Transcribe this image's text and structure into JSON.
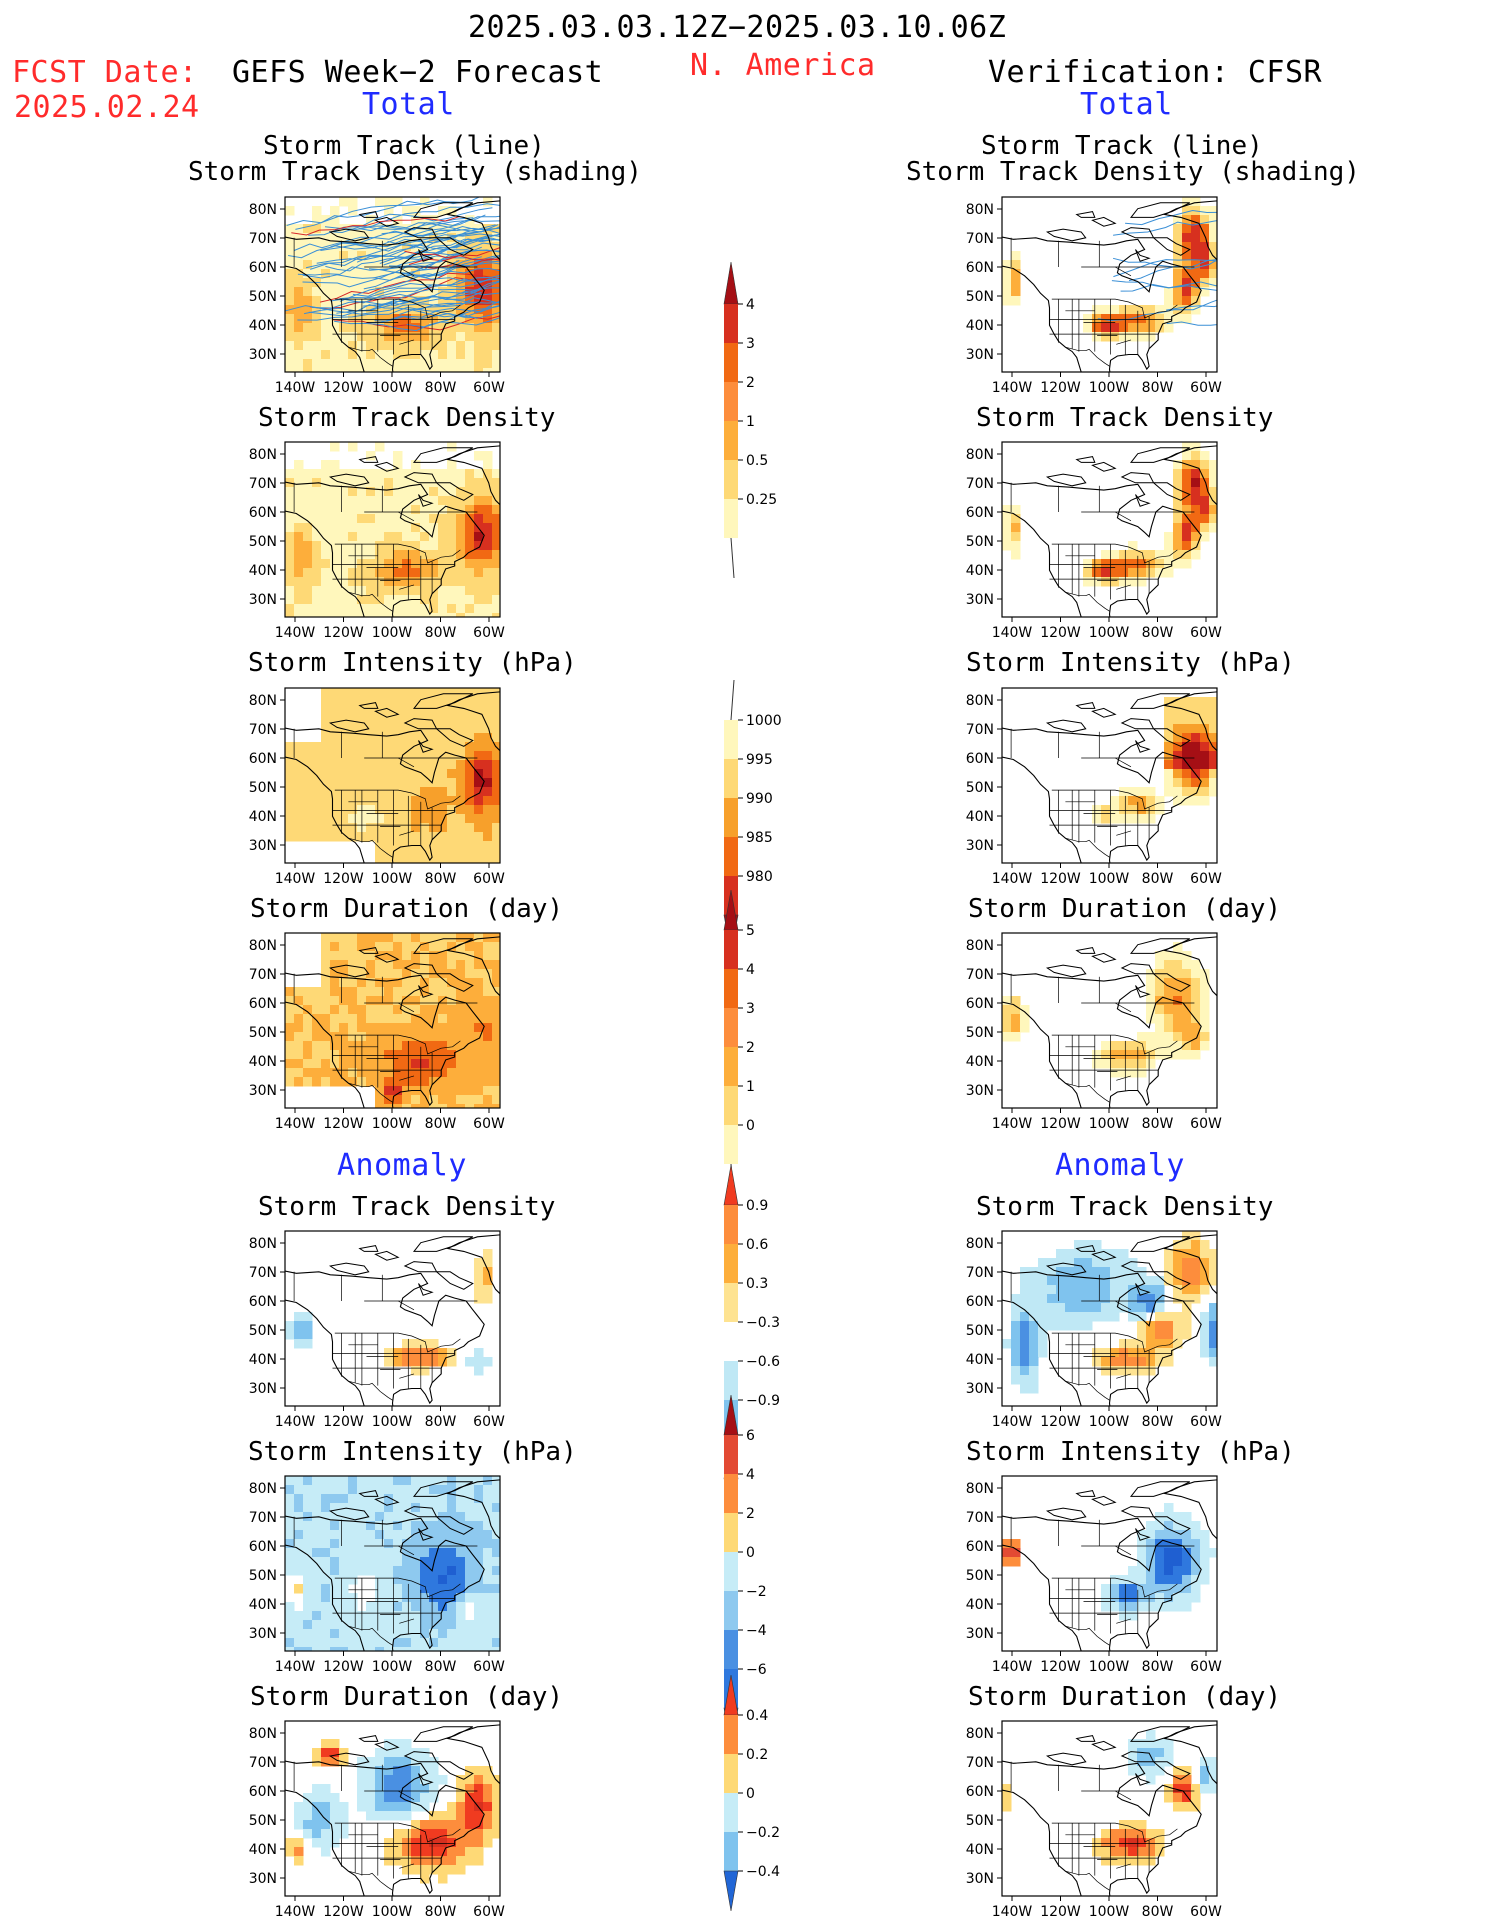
{
  "header": {
    "date_range": "2025.03.03.12Z−2025.03.10.06Z",
    "fcst_label": "FCST Date:",
    "fcst_date": "2025.02.24",
    "left_title": "GEFS Week−2 Forecast",
    "region": "N. America",
    "right_title": "Verification: CFSR"
  },
  "sections": {
    "total": "Total",
    "anomaly": "Anomaly"
  },
  "panel_titles": {
    "track_line": "Storm Track (line)",
    "track_shading": "Storm Track Density (shading)",
    "density": "Storm Track Density",
    "intensity": "Storm Intensity (hPa)",
    "duration": "Storm Duration (day)"
  },
  "axes": {
    "lat_labels": [
      "80N",
      "70N",
      "60N",
      "50N",
      "40N",
      "30N"
    ],
    "lon_labels": [
      "140W",
      "120W",
      "100W",
      "80W",
      "60W"
    ]
  },
  "colorbars": [
    {
      "id": "density_total",
      "labels": [
        "4",
        "3",
        "2",
        "1",
        "0.5",
        "0.25"
      ],
      "colors": [
        "#a50f15",
        "#d7301f",
        "#f16913",
        "#fd8d3c",
        "#fdae3b",
        "#fed976",
        "#fff7bc"
      ],
      "top_arrow": "#a50f15",
      "bottom_tail": "open"
    },
    {
      "id": "intensity_total",
      "labels": [
        "1000",
        "995",
        "990",
        "985",
        "980"
      ],
      "colors": [
        "#fff7bc",
        "#fed976",
        "#f7a02b",
        "#f16913",
        "#d7301f",
        "#a50f15"
      ],
      "top_arrow": "open",
      "bottom_tail": "#a50f15"
    },
    {
      "id": "duration_total",
      "labels": [
        "5",
        "4",
        "3",
        "2",
        "1",
        "0"
      ],
      "colors": [
        "#a50f15",
        "#d7301f",
        "#f16913",
        "#fd8d3c",
        "#fdae3b",
        "#fed976",
        "#fff7bc"
      ],
      "top_arrow": "#a50f15",
      "bottom_tail": "open"
    },
    {
      "id": "density_anom",
      "labels": [
        "0.9",
        "0.6",
        "0.3",
        "−0.3",
        "−0.6",
        "−0.9"
      ],
      "colors": [
        "#f03b20",
        "#fd8d3c",
        "#fdae3b",
        "#fee391",
        "#ffffff",
        "#bfe8f5",
        "#7fc3ee",
        "#4a90e2",
        "#2166d6"
      ],
      "top_arrow": "#f03b20",
      "bottom_tail": "#2166d6"
    },
    {
      "id": "intensity_anom",
      "labels": [
        "6",
        "4",
        "2",
        "0",
        "−2",
        "−4",
        "−6"
      ],
      "colors": [
        "#a50f15",
        "#e34a33",
        "#fd8d3c",
        "#fed976",
        "#c6ecf7",
        "#8ec9ef",
        "#4a90e2",
        "#2f78de",
        "#1f5fd1"
      ],
      "top_arrow": "#a50f15",
      "bottom_tail": "#1f5fd1"
    },
    {
      "id": "duration_anom",
      "labels": [
        "0.4",
        "0.2",
        "0",
        "−0.2",
        "−0.4"
      ],
      "colors": [
        "#f03b20",
        "#fd8d3c",
        "#fed976",
        "#c6ecf7",
        "#7fc3ee",
        "#2166d6"
      ],
      "top_arrow": "#f03b20",
      "bottom_tail": "#2166d6"
    }
  ],
  "chart_data": [
    {
      "type": "heatmap",
      "panel": "Forecast total storm track density with tracks",
      "title": "Storm Track (line) Storm Track Density (shading)",
      "palette": "density_total"
    },
    {
      "type": "heatmap",
      "panel": "Verification total storm track density with tracks",
      "title": "Storm Track (line) Storm Track Density (shading)",
      "palette": "density_total"
    },
    {
      "type": "heatmap",
      "panel": "Forecast total density",
      "title": "Storm Track Density",
      "palette": "density_total"
    },
    {
      "type": "heatmap",
      "panel": "Verification total density",
      "title": "Storm Track Density",
      "palette": "density_total"
    },
    {
      "type": "heatmap",
      "panel": "Forecast total intensity",
      "title": "Storm Intensity (hPa)",
      "palette": "intensity_total"
    },
    {
      "type": "heatmap",
      "panel": "Verification total intensity",
      "title": "Storm Intensity (hPa)",
      "palette": "intensity_total"
    },
    {
      "type": "heatmap",
      "panel": "Forecast total duration",
      "title": "Storm Duration (day)",
      "palette": "duration_total"
    },
    {
      "type": "heatmap",
      "panel": "Verification total duration",
      "title": "Storm Duration (day)",
      "palette": "duration_total"
    },
    {
      "type": "heatmap",
      "panel": "Forecast anomaly density",
      "title": "Storm Track Density",
      "palette": "density_anom"
    },
    {
      "type": "heatmap",
      "panel": "Verification anomaly density",
      "title": "Storm Track Density",
      "palette": "density_anom"
    },
    {
      "type": "heatmap",
      "panel": "Forecast anomaly intensity",
      "title": "Storm Intensity (hPa)",
      "palette": "intensity_anom"
    },
    {
      "type": "heatmap",
      "panel": "Verification anomaly intensity",
      "title": "Storm Intensity (hPa)",
      "palette": "intensity_anom"
    },
    {
      "type": "heatmap",
      "panel": "Forecast anomaly duration",
      "title": "Storm Duration (day)",
      "palette": "duration_anom"
    },
    {
      "type": "heatmap",
      "panel": "Verification anomaly duration",
      "title": "Storm Duration (day)",
      "palette": "duration_anom"
    }
  ]
}
